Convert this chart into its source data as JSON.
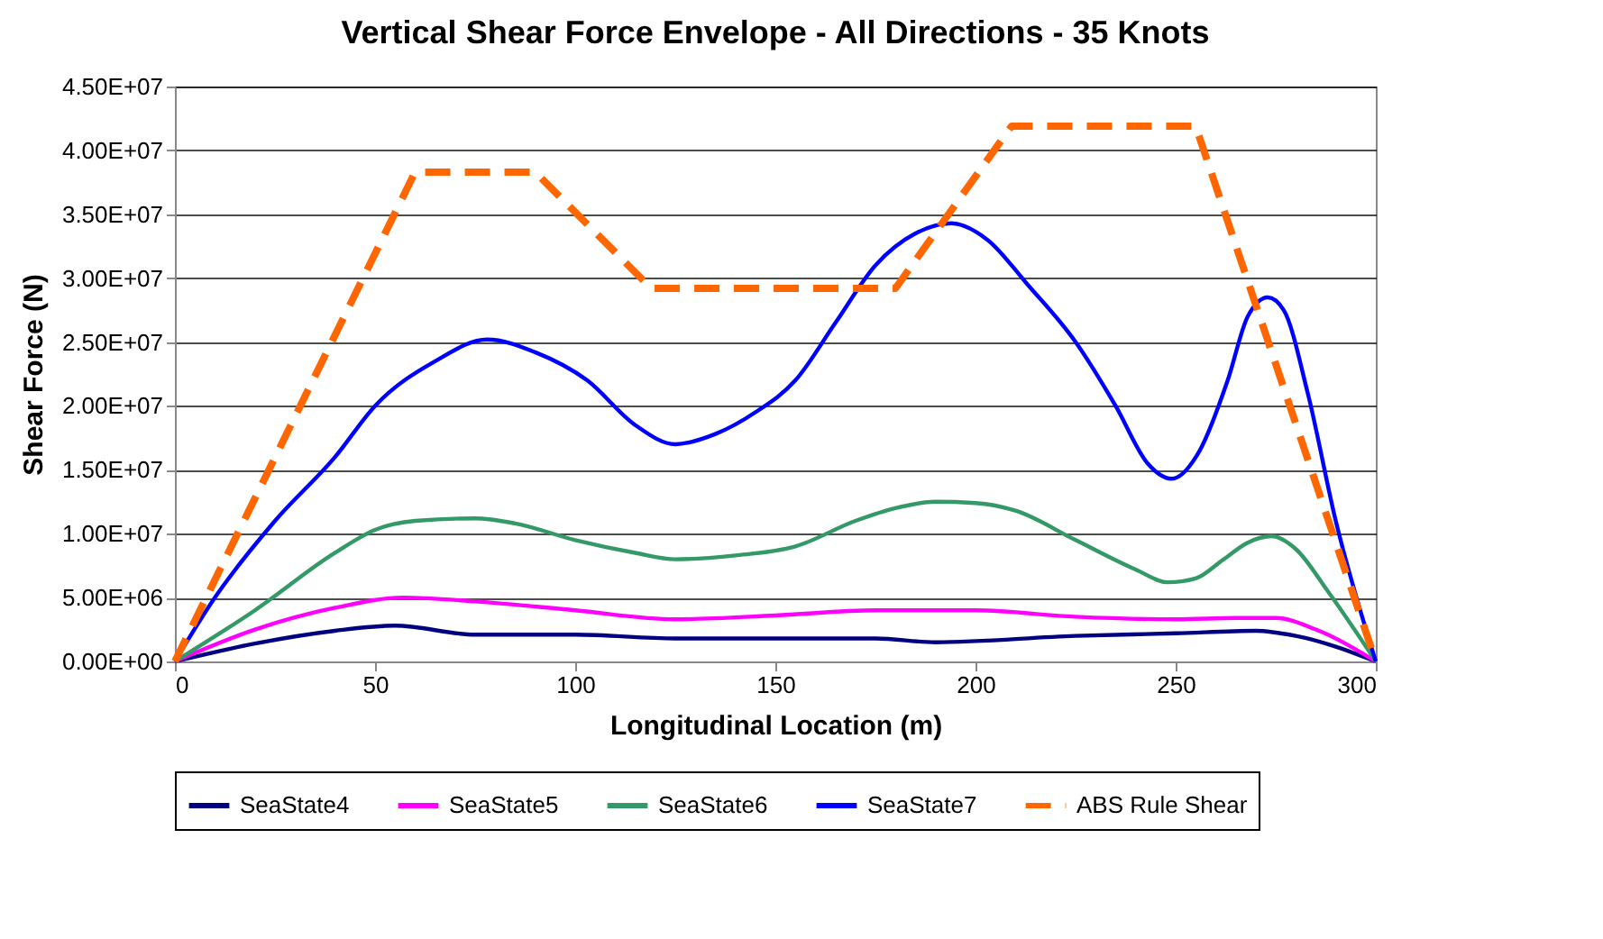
{
  "chart_data": {
    "type": "line",
    "title": "Vertical Shear Force Envelope - All Directions - 35 Knots",
    "xlabel": "Longitudinal Location (m)",
    "ylabel": "Shear Force (N)",
    "xlim": [
      0,
      300
    ],
    "xticks": [
      0,
      50,
      100,
      150,
      200,
      250,
      300
    ],
    "ylim": [
      0,
      45000000
    ],
    "yticks": [
      {
        "value": 0,
        "label": "0.00E+00"
      },
      {
        "value": 5000000,
        "label": "5.00E+06"
      },
      {
        "value": 10000000,
        "label": "1.00E+07"
      },
      {
        "value": 15000000,
        "label": "1.50E+07"
      },
      {
        "value": 20000000,
        "label": "2.00E+07"
      },
      {
        "value": 25000000,
        "label": "2.50E+07"
      },
      {
        "value": 30000000,
        "label": "3.00E+07"
      },
      {
        "value": 35000000,
        "label": "3.50E+07"
      },
      {
        "value": 40000000,
        "label": "4.00E+07"
      },
      {
        "value": 45000000,
        "label": "4.50E+07"
      }
    ],
    "grid": "y",
    "legend": "bottom",
    "marker": "none",
    "series": [
      {
        "name": "SeaState4",
        "color": "#000080",
        "line_style": "solid",
        "x": [
          0,
          20,
          40,
          55,
          75,
          100,
          125,
          175,
          190,
          225,
          250,
          270,
          280,
          300
        ],
        "values": [
          0,
          1400000,
          2400000,
          2800000,
          2100000,
          2100000,
          1800000,
          1800000,
          1500000,
          2000000,
          2200000,
          2400000,
          2000000,
          0
        ]
      },
      {
        "name": "SeaState5",
        "color": "#ff00ff",
        "line_style": "solid",
        "x": [
          0,
          20,
          40,
          57,
          75,
          100,
          125,
          150,
          175,
          200,
          225,
          250,
          265,
          275,
          285,
          300
        ],
        "values": [
          0,
          2500000,
          4200000,
          5000000,
          4700000,
          4000000,
          3300000,
          3600000,
          4000000,
          4000000,
          3500000,
          3300000,
          3400000,
          3400000,
          2500000,
          0
        ]
      },
      {
        "name": "SeaState6",
        "color": "#339966",
        "line_style": "solid",
        "x": [
          0,
          20,
          40,
          50,
          60,
          75,
          85,
          100,
          115,
          125,
          140,
          155,
          170,
          180,
          190,
          200,
          210,
          225,
          240,
          248,
          255,
          262,
          268,
          274,
          280,
          288,
          300
        ],
        "values": [
          0,
          4000000,
          8500000,
          10300000,
          11000000,
          11200000,
          10800000,
          9500000,
          8500000,
          8000000,
          8300000,
          9000000,
          11000000,
          12000000,
          12500000,
          12400000,
          11800000,
          9500000,
          7200000,
          6200000,
          6500000,
          8000000,
          9300000,
          9800000,
          8800000,
          5500000,
          0
        ]
      },
      {
        "name": "SeaState7",
        "color": "#0000ff",
        "line_style": "solid",
        "x": [
          0,
          10,
          25,
          40,
          50,
          65,
          78,
          90,
          103,
          115,
          125,
          135,
          145,
          155,
          165,
          175,
          185,
          194,
          203,
          213,
          225,
          235,
          243,
          249,
          256,
          263,
          268,
          273,
          277,
          283,
          290,
          300
        ],
        "values": [
          0,
          5000000,
          11000000,
          16000000,
          20000000,
          23500000,
          25200000,
          24200000,
          22000000,
          18500000,
          17000000,
          17800000,
          19500000,
          22000000,
          26500000,
          31000000,
          33500000,
          34300000,
          33000000,
          29500000,
          25000000,
          20000000,
          15500000,
          14300000,
          16500000,
          22000000,
          27000000,
          28500000,
          27500000,
          21000000,
          11000000,
          0
        ]
      },
      {
        "name": "ABS Rule Shear",
        "color": "#ff6600",
        "line_style": "dashed",
        "x": [
          0,
          60,
          90,
          119,
          180,
          209,
          255,
          300
        ],
        "values": [
          0,
          38300000,
          38300000,
          29200000,
          29200000,
          41900000,
          41900000,
          0
        ]
      }
    ]
  }
}
